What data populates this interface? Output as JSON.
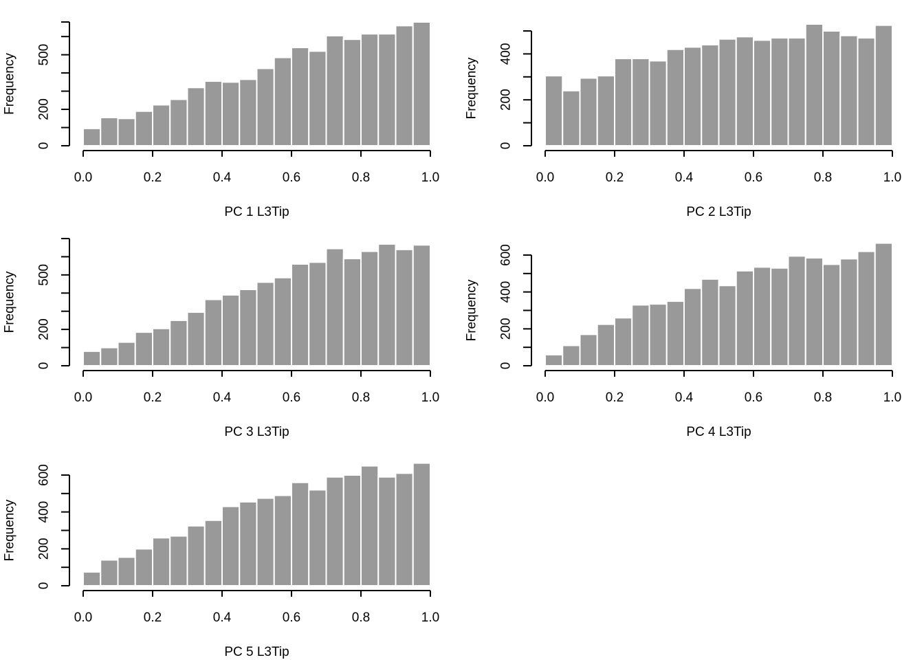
{
  "figure": {
    "bar_color": "#999999",
    "bar_border_color": "#ffffff",
    "axis_color": "#000000"
  },
  "chart_data": [
    {
      "type": "bar",
      "title": "",
      "xlabel": "PC 1 L3Tip",
      "ylabel": "Frequency",
      "bin_edges": [
        0.0,
        0.05,
        0.1,
        0.15,
        0.2,
        0.25,
        0.3,
        0.35,
        0.4,
        0.45,
        0.5,
        0.55,
        0.6,
        0.65,
        0.7,
        0.75,
        0.8,
        0.85,
        0.9,
        0.95,
        1.0
      ],
      "values": [
        95,
        155,
        150,
        190,
        225,
        255,
        320,
        355,
        350,
        365,
        425,
        485,
        540,
        520,
        605,
        585,
        615,
        615,
        660,
        680
      ],
      "xlim": [
        0.0,
        1.0
      ],
      "ylim": [
        0,
        680
      ],
      "x_ticks": [
        0.0,
        0.2,
        0.4,
        0.6,
        0.8,
        1.0
      ],
      "x_tick_labels": [
        "0.0",
        "0.2",
        "0.4",
        "0.6",
        "0.8",
        "1.0"
      ],
      "y_ticks": [
        0,
        100,
        200,
        300,
        400,
        500,
        600,
        680
      ],
      "y_tick_labels": [
        "0",
        "",
        "200",
        "",
        "",
        "500",
        "",
        ""
      ]
    },
    {
      "type": "bar",
      "title": "",
      "xlabel": "PC 2 L3Tip",
      "ylabel": "Frequency",
      "bin_edges": [
        0.0,
        0.05,
        0.1,
        0.15,
        0.2,
        0.25,
        0.3,
        0.35,
        0.4,
        0.45,
        0.5,
        0.55,
        0.6,
        0.65,
        0.7,
        0.75,
        0.8,
        0.85,
        0.9,
        0.95,
        1.0
      ],
      "values": [
        305,
        240,
        295,
        305,
        380,
        380,
        370,
        420,
        430,
        440,
        465,
        475,
        460,
        470,
        470,
        530,
        500,
        480,
        470,
        525
      ],
      "xlim": [
        0.0,
        1.0
      ],
      "ylim": [
        0,
        500
      ],
      "x_ticks": [
        0.0,
        0.2,
        0.4,
        0.6,
        0.8,
        1.0
      ],
      "x_tick_labels": [
        "0.0",
        "0.2",
        "0.4",
        "0.6",
        "0.8",
        "1.0"
      ],
      "y_ticks": [
        0,
        100,
        200,
        300,
        400,
        500
      ],
      "y_tick_labels": [
        "0",
        "",
        "200",
        "",
        "400",
        ""
      ]
    },
    {
      "type": "bar",
      "title": "",
      "xlabel": "PC 3 L3Tip",
      "ylabel": "Frequency",
      "bin_edges": [
        0.0,
        0.05,
        0.1,
        0.15,
        0.2,
        0.25,
        0.3,
        0.35,
        0.4,
        0.45,
        0.5,
        0.55,
        0.6,
        0.65,
        0.7,
        0.75,
        0.8,
        0.85,
        0.9,
        0.95,
        1.0
      ],
      "values": [
        80,
        100,
        130,
        185,
        205,
        250,
        295,
        365,
        390,
        420,
        460,
        485,
        560,
        570,
        645,
        590,
        630,
        670,
        640,
        665
      ],
      "xlim": [
        0.0,
        1.0
      ],
      "ylim": [
        0,
        700
      ],
      "x_ticks": [
        0.0,
        0.2,
        0.4,
        0.6,
        0.8,
        1.0
      ],
      "x_tick_labels": [
        "0.0",
        "0.2",
        "0.4",
        "0.6",
        "0.8",
        "1.0"
      ],
      "y_ticks": [
        0,
        100,
        200,
        300,
        400,
        500,
        600,
        700
      ],
      "y_tick_labels": [
        "0",
        "",
        "200",
        "",
        "",
        "500",
        "",
        ""
      ]
    },
    {
      "type": "bar",
      "title": "",
      "xlabel": "PC 4 L3Tip",
      "ylabel": "Frequency",
      "bin_edges": [
        0.0,
        0.05,
        0.1,
        0.15,
        0.2,
        0.25,
        0.3,
        0.35,
        0.4,
        0.45,
        0.5,
        0.55,
        0.6,
        0.65,
        0.7,
        0.75,
        0.8,
        0.85,
        0.9,
        0.95,
        1.0
      ],
      "values": [
        60,
        110,
        170,
        225,
        260,
        330,
        335,
        350,
        420,
        470,
        435,
        515,
        535,
        530,
        595,
        585,
        550,
        580,
        620,
        665
      ],
      "xlim": [
        0.0,
        1.0
      ],
      "ylim": [
        0,
        600
      ],
      "x_ticks": [
        0.0,
        0.2,
        0.4,
        0.6,
        0.8,
        1.0
      ],
      "x_tick_labels": [
        "0.0",
        "0.2",
        "0.4",
        "0.6",
        "0.8",
        "1.0"
      ],
      "y_ticks": [
        0,
        100,
        200,
        300,
        400,
        500,
        600
      ],
      "y_tick_labels": [
        "0",
        "",
        "200",
        "",
        "400",
        "",
        "600"
      ]
    },
    {
      "type": "bar",
      "title": "",
      "xlabel": "PC 5 L3Tip",
      "ylabel": "Frequency",
      "bin_edges": [
        0.0,
        0.05,
        0.1,
        0.15,
        0.2,
        0.25,
        0.3,
        0.35,
        0.4,
        0.45,
        0.5,
        0.55,
        0.6,
        0.65,
        0.7,
        0.75,
        0.8,
        0.85,
        0.9,
        0.95,
        1.0
      ],
      "values": [
        75,
        140,
        155,
        200,
        260,
        270,
        325,
        355,
        430,
        455,
        475,
        490,
        560,
        520,
        590,
        600,
        650,
        590,
        610,
        665
      ],
      "xlim": [
        0.0,
        1.0
      ],
      "ylim": [
        0,
        600
      ],
      "x_ticks": [
        0.0,
        0.2,
        0.4,
        0.6,
        0.8,
        1.0
      ],
      "x_tick_labels": [
        "0.0",
        "0.2",
        "0.4",
        "0.6",
        "0.8",
        "1.0"
      ],
      "y_ticks": [
        0,
        100,
        200,
        300,
        400,
        500,
        600
      ],
      "y_tick_labels": [
        "0",
        "",
        "200",
        "",
        "400",
        "",
        "600"
      ]
    }
  ]
}
